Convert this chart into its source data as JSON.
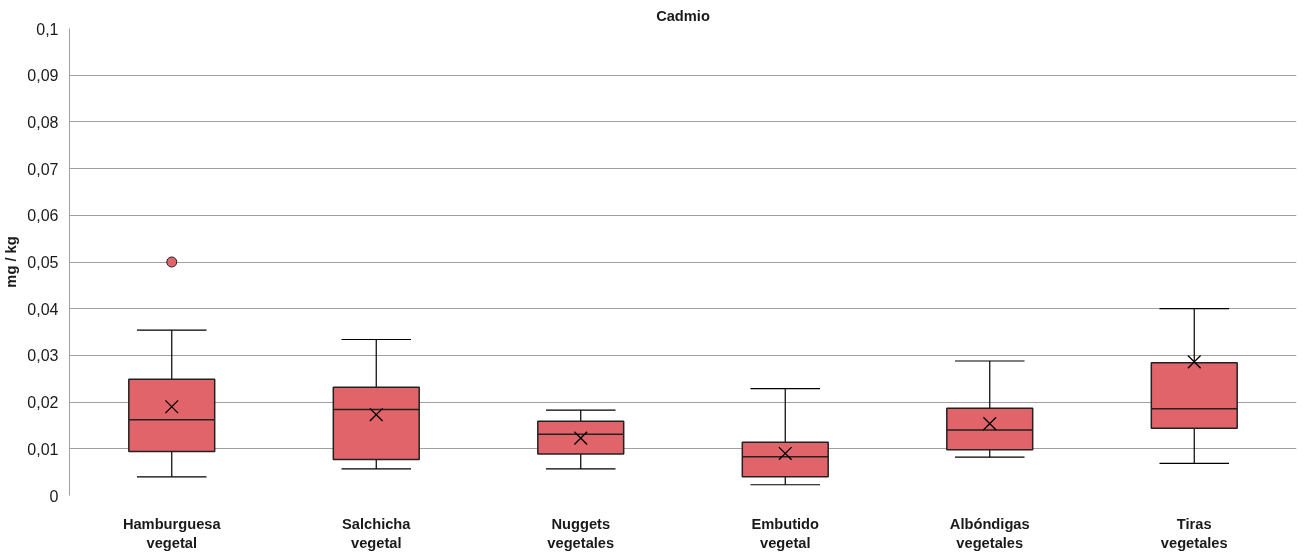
{
  "chart_data": {
    "type": "box",
    "title": "Cadmio",
    "ylabel": "mg / kg",
    "categories": [
      "Hamburguesa vegetal",
      "Salchicha vegetal",
      "Nuggets vegetales",
      "Embutido vegetal",
      "Albóndigas vegetales",
      "Tiras vegetales"
    ],
    "color": "#e06469",
    "boxes": [
      {
        "low": 0.004,
        "q1": 0.0094,
        "median": 0.0162,
        "q3": 0.0249,
        "high": 0.0354,
        "mean": 0.019,
        "outliers": [
          0.05
        ]
      },
      {
        "low": 0.0057,
        "q1": 0.0077,
        "median": 0.0184,
        "q3": 0.0232,
        "high": 0.0334,
        "mean": 0.0173
      },
      {
        "low": 0.0057,
        "q1": 0.0089,
        "median": 0.0131,
        "q3": 0.0159,
        "high": 0.0183,
        "mean": 0.0123
      },
      {
        "low": 0.0023,
        "q1": 0.004,
        "median": 0.0083,
        "q3": 0.0114,
        "high": 0.0229,
        "mean": 0.009
      },
      {
        "low": 0.0082,
        "q1": 0.0098,
        "median": 0.014,
        "q3": 0.0187,
        "high": 0.0288,
        "mean": 0.0154
      },
      {
        "low": 0.0069,
        "q1": 0.0144,
        "median": 0.0186,
        "q3": 0.0284,
        "high": 0.04,
        "mean": 0.0286
      }
    ],
    "ylim": [
      0,
      0.1
    ],
    "yticks": [
      {
        "value": 0,
        "label": "0"
      },
      {
        "value": 0.01,
        "label": "0,01"
      },
      {
        "value": 0.02,
        "label": "0,02"
      },
      {
        "value": 0.03,
        "label": "0,03"
      },
      {
        "value": 0.04,
        "label": "0,04"
      },
      {
        "value": 0.05,
        "label": "0,05"
      },
      {
        "value": 0.06,
        "label": "0,06"
      },
      {
        "value": 0.07,
        "label": "0,07"
      },
      {
        "value": 0.08,
        "label": "0,08"
      },
      {
        "value": 0.09,
        "label": "0,09"
      },
      {
        "value": 0.1,
        "label": "0,1"
      }
    ],
    "grid": "y",
    "marker": "x"
  }
}
